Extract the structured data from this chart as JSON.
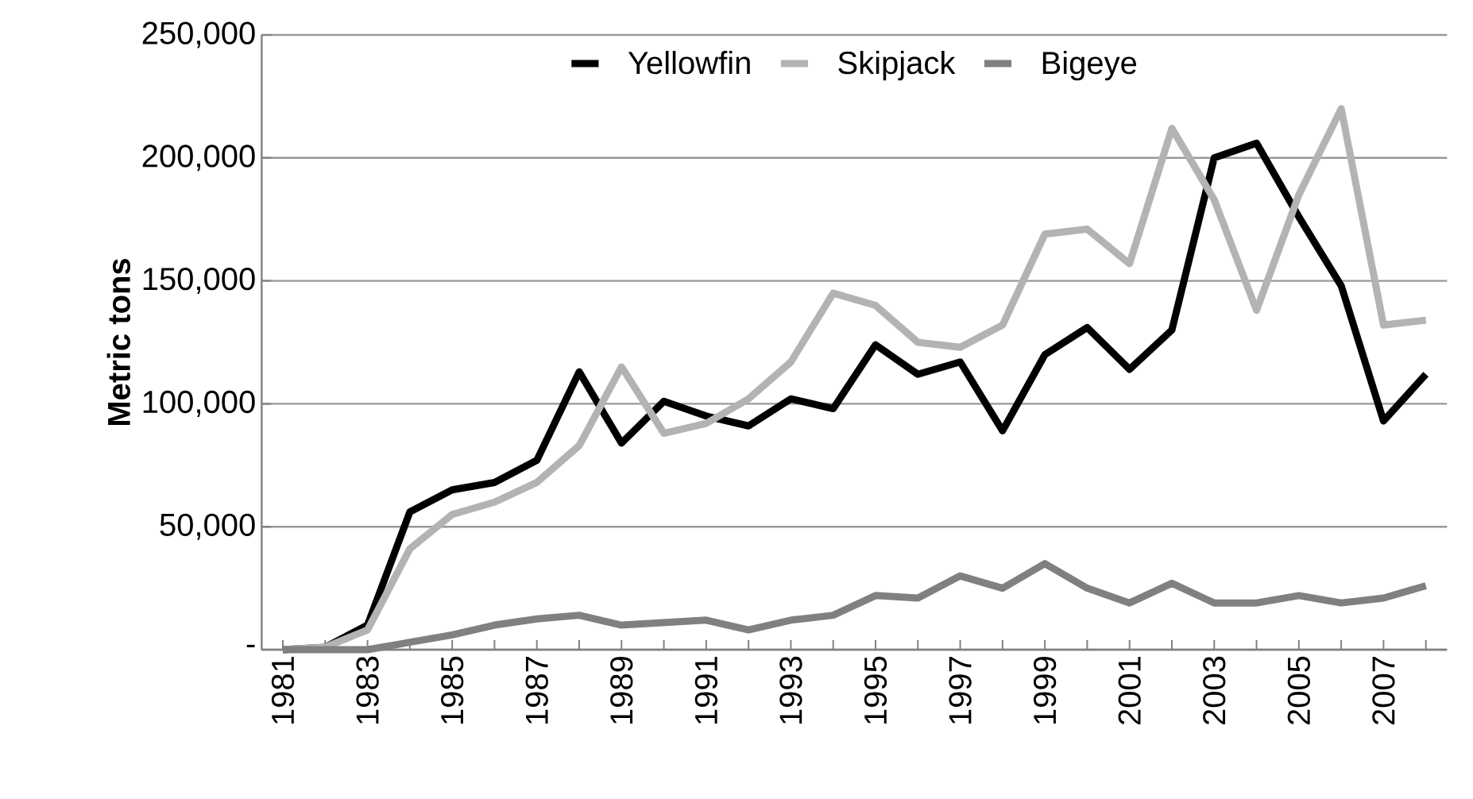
{
  "chart_data": {
    "type": "line",
    "ylabel": "Metric tons",
    "categories": [
      "1981",
      null,
      "1983",
      null,
      "1985",
      null,
      "1987",
      null,
      "1989",
      null,
      "1991",
      null,
      "1993",
      null,
      "1995",
      null,
      "1997",
      null,
      "1999",
      null,
      "2001",
      null,
      "2003",
      null,
      "2005",
      null,
      "2007",
      null
    ],
    "series": [
      {
        "name": "Yellowfin",
        "color": "#000000",
        "values": [
          0,
          1000,
          10000,
          56000,
          65000,
          68000,
          77000,
          113000,
          84000,
          101000,
          95000,
          91000,
          102000,
          98000,
          124000,
          112000,
          117000,
          89000,
          120000,
          131000,
          114000,
          130000,
          200000,
          206000,
          176000,
          148000,
          93000,
          112000
        ]
      },
      {
        "name": "Skipjack",
        "color": "#b3b3b3",
        "values": [
          0,
          1000,
          8000,
          41000,
          55000,
          60000,
          68000,
          83000,
          115000,
          88000,
          92000,
          102000,
          117000,
          145000,
          140000,
          125000,
          123000,
          132000,
          169000,
          171000,
          157000,
          212000,
          183000,
          138000,
          185000,
          220000,
          132000,
          134000
        ]
      },
      {
        "name": "Bigeye",
        "color": "#808080",
        "values": [
          0,
          0,
          0,
          3000,
          6000,
          10000,
          12500,
          14000,
          10000,
          11000,
          12000,
          8000,
          12000,
          14000,
          22000,
          21000,
          30000,
          25000,
          35000,
          25000,
          19000,
          27000,
          19000,
          19000,
          22000,
          19000,
          21000,
          26000
        ]
      }
    ],
    "ylim": [
      0,
      250000
    ],
    "yticks": [
      {
        "value": 0,
        "label": "-"
      },
      {
        "value": 50000,
        "label": "50,000"
      },
      {
        "value": 100000,
        "label": "100,000"
      },
      {
        "value": 150000,
        "label": "150,000"
      },
      {
        "value": 200000,
        "label": "200,000"
      },
      {
        "value": 250000,
        "label": "250,000"
      }
    ],
    "grid": "y",
    "legend": "top",
    "marker": "none",
    "line_style": "solid"
  }
}
